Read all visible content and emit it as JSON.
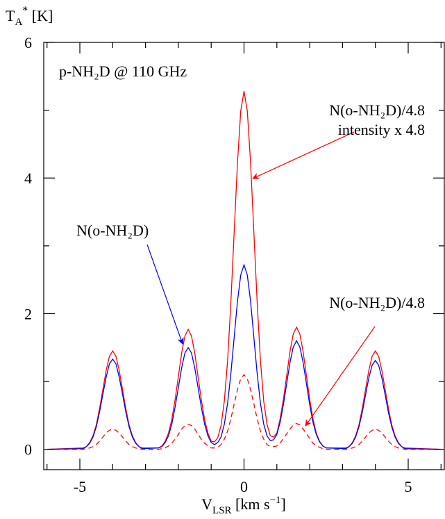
{
  "chart_data": {
    "type": "line",
    "ylabel_parts": [
      "T",
      "A",
      "*",
      " [K]"
    ],
    "xlabel_parts": [
      "V",
      "LSR",
      " [km s",
      "−1",
      "]"
    ],
    "xlim": [
      -6.1,
      6.1
    ],
    "ylim": [
      -0.3,
      6
    ],
    "xticks": [
      -5,
      0,
      5
    ],
    "yticks": [
      0,
      2,
      4,
      6
    ],
    "xminor": [
      -6,
      -4,
      -3,
      -2,
      -1,
      1,
      2,
      3,
      4,
      6
    ],
    "yminor": [
      1,
      3,
      5
    ],
    "x": [
      -6,
      -4.9,
      -4.8,
      -4.7,
      -4.6,
      -4.5,
      -4.4,
      -4.3,
      -4.2,
      -4.1,
      -4.0,
      -3.9,
      -3.8,
      -3.7,
      -3.6,
      -3.5,
      -3.4,
      -3.3,
      -3.2,
      -3.1,
      -2.6,
      -2.5,
      -2.4,
      -2.3,
      -2.2,
      -2.1,
      -2.0,
      -1.9,
      -1.8,
      -1.7,
      -1.6,
      -1.5,
      -1.4,
      -1.3,
      -1.2,
      -1.1,
      -1.0,
      -0.9,
      -0.8,
      -0.7,
      -0.6,
      -0.5,
      -0.4,
      -0.3,
      -0.2,
      -0.1,
      0,
      0.1,
      0.2,
      0.3,
      0.4,
      0.5,
      0.6,
      0.7,
      0.8,
      0.9,
      1.0,
      1.1,
      1.2,
      1.3,
      1.4,
      1.5,
      1.6,
      1.7,
      1.8,
      1.9,
      2.0,
      2.1,
      2.2,
      2.3,
      2.4,
      2.5,
      3.1,
      3.2,
      3.3,
      3.4,
      3.5,
      3.6,
      3.7,
      3.8,
      3.9,
      4.0,
      4.1,
      4.2,
      4.3,
      4.4,
      4.5,
      4.6,
      4.7,
      4.8,
      4.9,
      6
    ],
    "series": [
      {
        "color": "#ff0000",
        "dash": true,
        "values": [
          0,
          0,
          0.01,
          0.02,
          0.04,
          0.07,
          0.12,
          0.18,
          0.24,
          0.28,
          0.3,
          0.28,
          0.24,
          0.18,
          0.12,
          0.07,
          0.04,
          0.02,
          0.01,
          0,
          0,
          0.01,
          0.02,
          0.05,
          0.09,
          0.15,
          0.22,
          0.3,
          0.35,
          0.37,
          0.35,
          0.3,
          0.22,
          0.15,
          0.09,
          0.05,
          0.02,
          0.02,
          0.03,
          0.07,
          0.15,
          0.27,
          0.45,
          0.67,
          0.88,
          1.04,
          1.1,
          1.04,
          0.88,
          0.67,
          0.45,
          0.27,
          0.15,
          0.07,
          0.04,
          0.04,
          0.05,
          0.09,
          0.16,
          0.23,
          0.3,
          0.36,
          0.38,
          0.36,
          0.3,
          0.23,
          0.16,
          0.09,
          0.05,
          0.03,
          0.01,
          0,
          0,
          0.01,
          0.02,
          0.04,
          0.07,
          0.12,
          0.18,
          0.24,
          0.28,
          0.3,
          0.28,
          0.24,
          0.18,
          0.12,
          0.07,
          0.04,
          0.02,
          0.01,
          0,
          0
        ]
      },
      {
        "color": "#ff0000",
        "dash": false,
        "values": [
          0,
          0.02,
          0.04,
          0.1,
          0.2,
          0.36,
          0.6,
          0.88,
          1.16,
          1.37,
          1.45,
          1.37,
          1.16,
          0.88,
          0.6,
          0.36,
          0.2,
          0.1,
          0.04,
          0.02,
          0.02,
          0.05,
          0.12,
          0.24,
          0.44,
          0.73,
          1.07,
          1.42,
          1.67,
          1.77,
          1.67,
          1.42,
          1.07,
          0.73,
          0.44,
          0.24,
          0.12,
          0.11,
          0.17,
          0.35,
          0.71,
          1.31,
          2.17,
          3.2,
          4.22,
          4.99,
          5.28,
          4.99,
          4.22,
          3.2,
          2.17,
          1.31,
          0.71,
          0.37,
          0.2,
          0.18,
          0.24,
          0.45,
          0.74,
          1.09,
          1.44,
          1.7,
          1.8,
          1.7,
          1.44,
          1.09,
          0.74,
          0.45,
          0.24,
          0.12,
          0.05,
          0.02,
          0.02,
          0.04,
          0.1,
          0.2,
          0.36,
          0.6,
          0.88,
          1.16,
          1.37,
          1.45,
          1.37,
          1.16,
          0.88,
          0.6,
          0.36,
          0.2,
          0.1,
          0.04,
          0.02,
          0
        ]
      },
      {
        "color": "#0000ff",
        "dash": false,
        "values": [
          0,
          0.01,
          0.04,
          0.09,
          0.18,
          0.33,
          0.55,
          0.81,
          1.06,
          1.26,
          1.33,
          1.26,
          1.06,
          0.81,
          0.55,
          0.33,
          0.18,
          0.09,
          0.04,
          0.01,
          0.02,
          0.04,
          0.1,
          0.2,
          0.37,
          0.62,
          0.91,
          1.2,
          1.42,
          1.5,
          1.42,
          1.2,
          0.91,
          0.62,
          0.37,
          0.2,
          0.1,
          0.07,
          0.1,
          0.18,
          0.37,
          0.68,
          1.12,
          1.65,
          2.18,
          2.57,
          2.72,
          2.57,
          2.18,
          1.65,
          1.12,
          0.68,
          0.37,
          0.2,
          0.13,
          0.14,
          0.22,
          0.4,
          0.66,
          0.97,
          1.28,
          1.51,
          1.6,
          1.51,
          1.28,
          0.97,
          0.66,
          0.4,
          0.22,
          0.11,
          0.05,
          0.02,
          0.01,
          0.04,
          0.09,
          0.18,
          0.33,
          0.54,
          0.8,
          1.05,
          1.24,
          1.31,
          1.24,
          1.05,
          0.8,
          0.54,
          0.33,
          0.18,
          0.09,
          0.04,
          0.01,
          0
        ]
      }
    ],
    "annotations": [
      {
        "text": "p-NH₂D @ 110 GHz",
        "color": "#000000"
      },
      {
        "text": "N(o-NH₂D)/4.8",
        "color": "#ff0000"
      },
      {
        "text": "intensity x 4.8",
        "color": "#ff0000"
      },
      {
        "text": "N(o-NH₂D)",
        "color": "#0000ff"
      },
      {
        "text": "N(o-NH₂D)/4.8",
        "color": "#ff0000"
      }
    ]
  }
}
